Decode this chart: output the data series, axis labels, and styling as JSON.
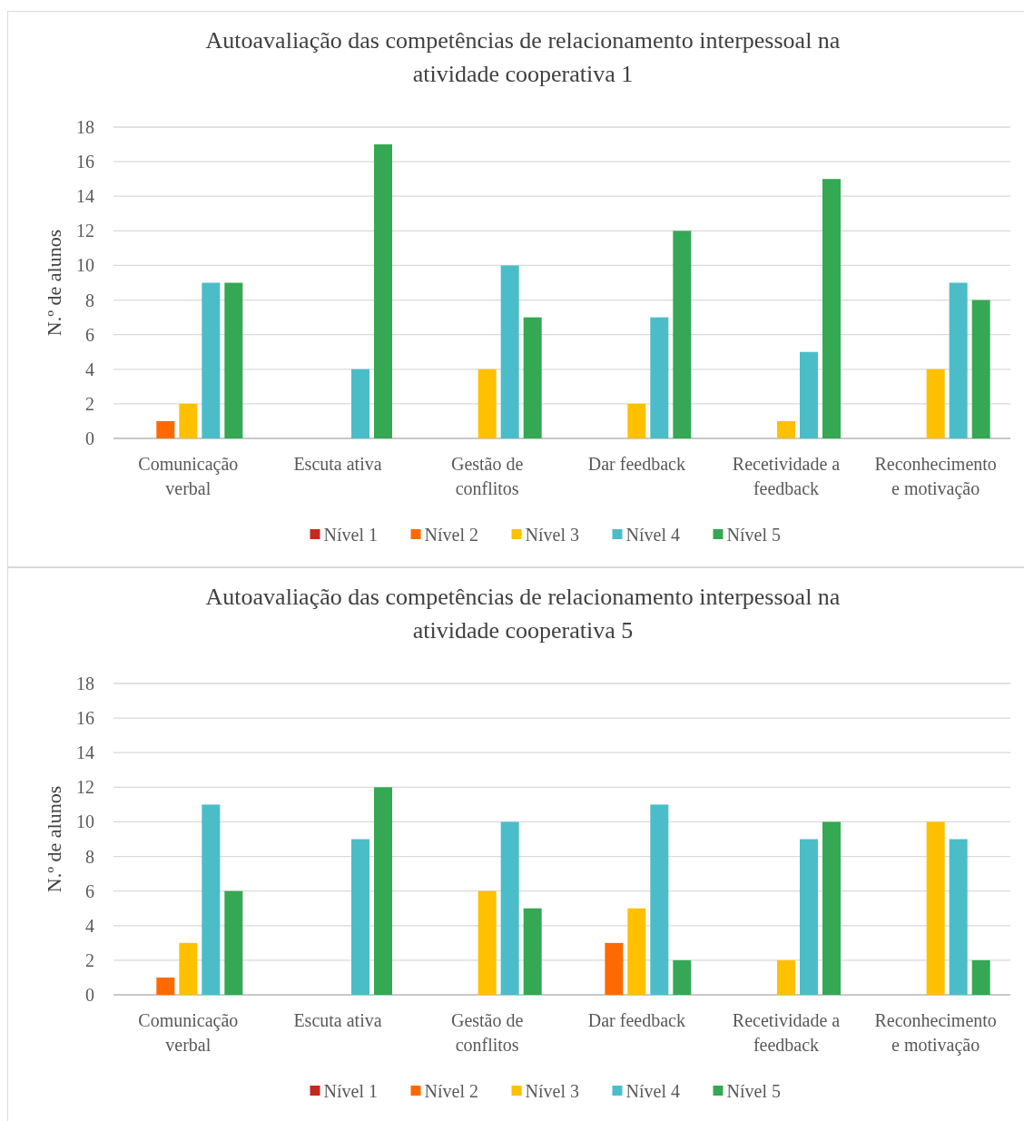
{
  "chart_data": [
    {
      "type": "bar",
      "title": "Autoavaliação das competências de relacionamento interpessoal na atividade cooperativa 1",
      "ylabel": "N.º de alunos",
      "categories": [
        "Comunicação verbal",
        "Escuta ativa",
        "Gestão de conflitos",
        "Dar feedback",
        "Recetividade a feedback",
        "Reconhecimento e motivação"
      ],
      "ylim": [
        0,
        18
      ],
      "yticks": [
        0,
        2,
        4,
        6,
        8,
        10,
        12,
        14,
        16,
        18
      ],
      "grid": "y",
      "legend": "bottom",
      "series": [
        {
          "name": "Nível 1",
          "color": "#c5281c",
          "values": [
            0,
            0,
            0,
            0,
            0,
            0
          ]
        },
        {
          "name": "Nível 2",
          "color": "#ff6a00",
          "values": [
            1,
            0,
            0,
            0,
            0,
            0
          ]
        },
        {
          "name": "Nível 3",
          "color": "#ffc000",
          "values": [
            2,
            0,
            4,
            2,
            1,
            4
          ]
        },
        {
          "name": "Nível 4",
          "color": "#4bbdc8",
          "values": [
            9,
            4,
            10,
            7,
            5,
            9
          ]
        },
        {
          "name": "Nível 5",
          "color": "#34a853",
          "values": [
            9,
            17,
            7,
            12,
            15,
            8
          ]
        }
      ]
    },
    {
      "type": "bar",
      "title": "Autoavaliação das competências de relacionamento interpessoal na atividade cooperativa 5",
      "ylabel": "N.º de alunos",
      "categories": [
        "Comunicação verbal",
        "Escuta ativa",
        "Gestão de conflitos",
        "Dar feedback",
        "Recetividade a feedback",
        "Reconhecimento e motivação"
      ],
      "ylim": [
        0,
        18
      ],
      "yticks": [
        0,
        2,
        4,
        6,
        8,
        10,
        12,
        14,
        16,
        18
      ],
      "grid": "y",
      "legend": "bottom",
      "series": [
        {
          "name": "Nível 1",
          "color": "#c5281c",
          "values": [
            0,
            0,
            0,
            0,
            0,
            0
          ]
        },
        {
          "name": "Nível 2",
          "color": "#ff6a00",
          "values": [
            1,
            0,
            0,
            3,
            0,
            0
          ]
        },
        {
          "name": "Nível 3",
          "color": "#ffc000",
          "values": [
            3,
            0,
            6,
            5,
            2,
            10
          ]
        },
        {
          "name": "Nível 4",
          "color": "#4bbdc8",
          "values": [
            11,
            9,
            10,
            11,
            9,
            9
          ]
        },
        {
          "name": "Nível 5",
          "color": "#34a853",
          "values": [
            6,
            12,
            5,
            2,
            10,
            2
          ]
        }
      ]
    }
  ]
}
